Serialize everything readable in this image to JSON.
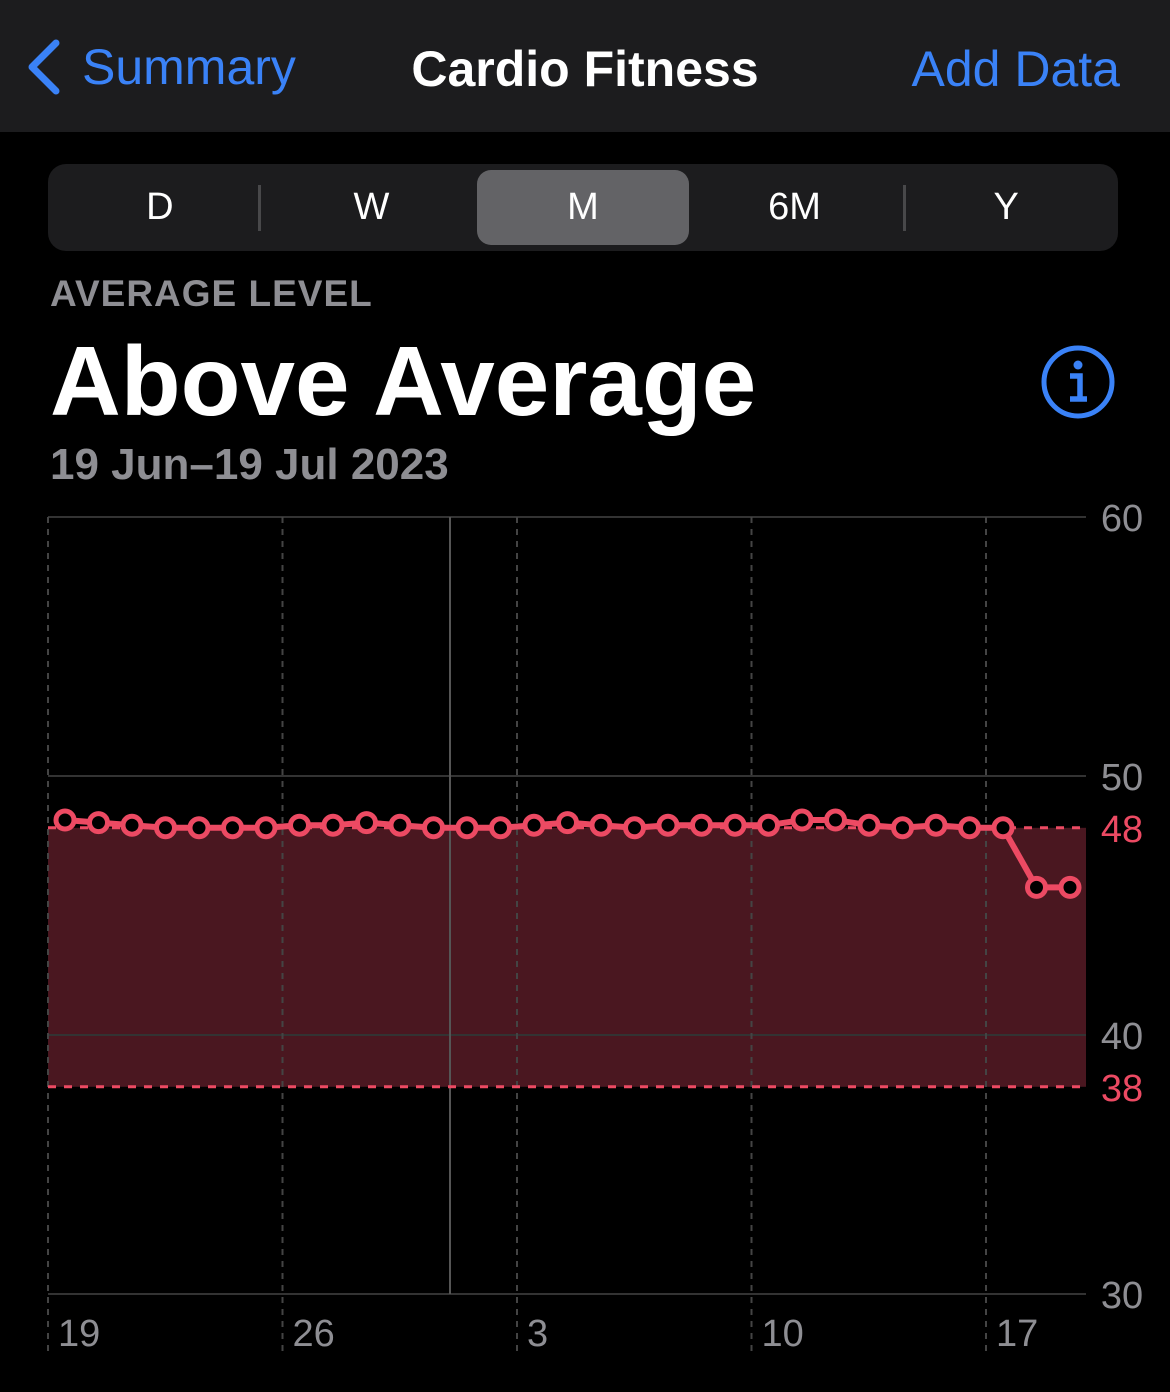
{
  "nav": {
    "back_label": "Summary",
    "title": "Cardio Fitness",
    "add_label": "Add Data"
  },
  "segments": [
    {
      "label": "D"
    },
    {
      "label": "W"
    },
    {
      "label": "M",
      "selected": true
    },
    {
      "label": "6M"
    },
    {
      "label": "Y"
    }
  ],
  "summary": {
    "label": "AVERAGE LEVEL",
    "value": "Above Average",
    "range": "19 Jun–19 Jul 2023"
  },
  "colors": {
    "accent": "#3a82f7",
    "series": "#ec4a63",
    "band": "#4a1720"
  },
  "chart_data": {
    "type": "line",
    "x_start": "2023-06-19",
    "x_end": "2023-07-19",
    "x": [
      "19 Jun",
      "20 Jun",
      "21 Jun",
      "22 Jun",
      "23 Jun",
      "24 Jun",
      "25 Jun",
      "26 Jun",
      "27 Jun",
      "28 Jun",
      "29 Jun",
      "30 Jun",
      "1 Jul",
      "2 Jul",
      "3 Jul",
      "4 Jul",
      "5 Jul",
      "6 Jul",
      "7 Jul",
      "8 Jul",
      "9 Jul",
      "10 Jul",
      "11 Jul",
      "12 Jul",
      "13 Jul",
      "14 Jul",
      "15 Jul",
      "16 Jul",
      "17 Jul",
      "18 Jul",
      "19 Jul"
    ],
    "values": [
      48.3,
      48.2,
      48.1,
      48.0,
      48.0,
      48.0,
      48.0,
      48.1,
      48.1,
      48.2,
      48.1,
      48.0,
      48.0,
      48.0,
      48.1,
      48.2,
      48.1,
      48.0,
      48.1,
      48.1,
      48.1,
      48.1,
      48.3,
      48.3,
      48.1,
      48.0,
      48.1,
      48.0,
      48.0,
      45.7,
      45.7
    ],
    "ylim": [
      30,
      60
    ],
    "y_ticks": [
      "30",
      "40",
      "50",
      "60"
    ],
    "x_ticks": [
      "19",
      "26",
      "3",
      "10",
      "17"
    ],
    "band": {
      "low": 38,
      "high": 48,
      "low_label": "38",
      "high_label": "48"
    },
    "grid": true
  }
}
